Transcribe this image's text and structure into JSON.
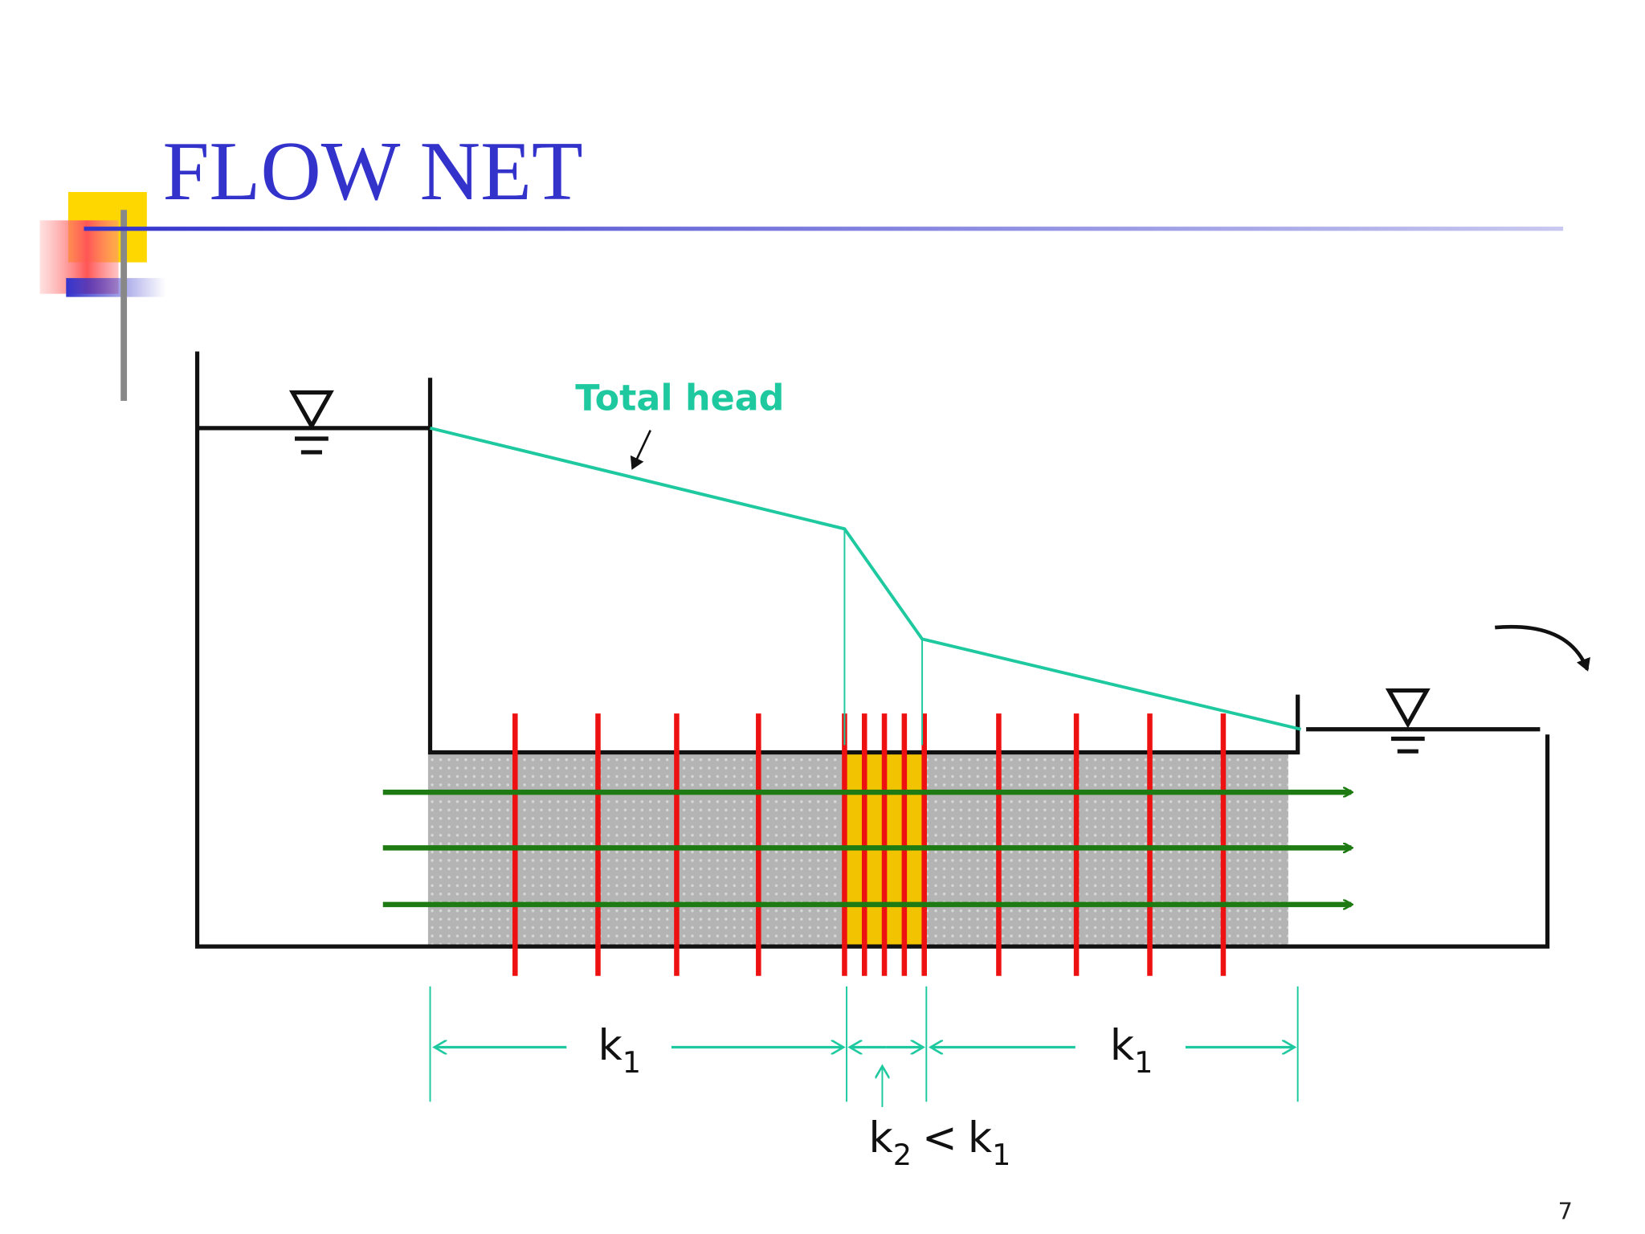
{
  "title": "FLOW NET",
  "diagram": {
    "total_head_label": "Total head",
    "left_zone": {
      "symbol": "k",
      "subscript": "1"
    },
    "right_zone": {
      "symbol": "k",
      "subscript": "1"
    },
    "middle_zone": {
      "symbol": "k",
      "subscript": "2",
      "relation": "<",
      "compare_symbol": "k",
      "compare_subscript": "1"
    }
  },
  "page_number": "7"
}
